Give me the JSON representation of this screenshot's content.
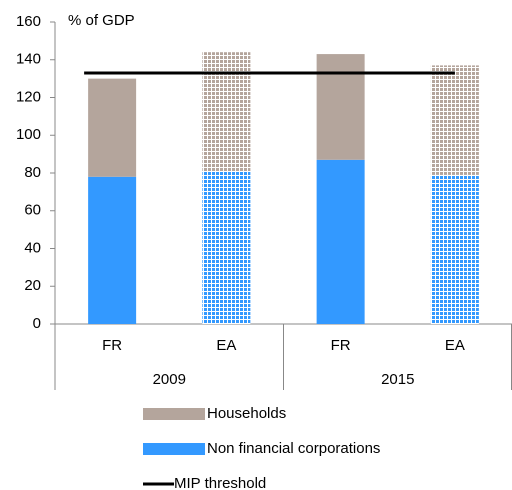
{
  "chart_data": {
    "type": "bar",
    "stacked": true,
    "y_label": "% of GDP",
    "categories": [
      "FR",
      "EA",
      "FR",
      "EA"
    ],
    "groups": [
      {
        "label": "2009",
        "span": 2
      },
      {
        "label": "2015",
        "span": 2
      }
    ],
    "patterned": [
      false,
      true,
      false,
      true
    ],
    "series": [
      {
        "name": "Non financial corporations",
        "color": "#3399ff",
        "values": [
          78,
          81,
          87,
          79
        ]
      },
      {
        "name": "Households",
        "color": "#b4a59c",
        "values": [
          52,
          63,
          56,
          58
        ]
      },
      {
        "name": "MIP threshold",
        "type": "line",
        "color": "#000000",
        "values": [
          133,
          133,
          133,
          133
        ]
      }
    ],
    "legend_order": [
      1,
      0,
      2
    ],
    "ylim": [
      0,
      160
    ],
    "yticks": [
      0,
      20,
      40,
      60,
      80,
      100,
      120,
      140,
      160
    ],
    "grid": false
  }
}
